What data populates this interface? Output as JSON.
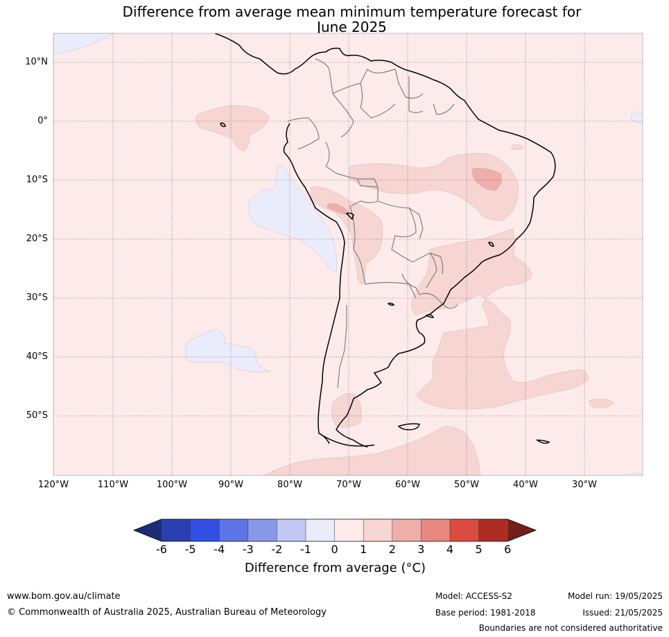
{
  "title_line1": "Difference from average mean minimum temperature forecast for",
  "title_line2": "June 2025",
  "lat_labels": [
    "10°N",
    "0°",
    "10°S",
    "20°S",
    "30°S",
    "40°S",
    "50°S"
  ],
  "lon_labels": [
    "120°W",
    "110°W",
    "100°W",
    "90°W",
    "80°W",
    "70°W",
    "60°W",
    "50°W",
    "40°W",
    "30°W"
  ],
  "colorbar": {
    "ticks": [
      "-6",
      "-5",
      "-4",
      "-3",
      "-2",
      "-1",
      "0",
      "1",
      "2",
      "3",
      "4",
      "5",
      "6"
    ],
    "colors": [
      "#2a3fb0",
      "#3150e3",
      "#5f74e6",
      "#8899ec",
      "#c2c8f4",
      "#eaecfb",
      "#fcebea",
      "#f6d5d3",
      "#eeaea9",
      "#e88880",
      "#db4b3f",
      "#ad2c24"
    ],
    "low_extend_color": "#1e2c78",
    "high_extend_color": "#741e1b",
    "label": "Difference from average (°C)"
  },
  "map_colors": {
    "base_anomaly": "#fcebea",
    "warm_1_2": "#f6d5d3",
    "warm_2_3": "#eeaea9",
    "cool_0_1": "#eaecfb",
    "coast": "#000000",
    "borders": "#808080",
    "grid": "#444444"
  },
  "footer": {
    "website": "www.bom.gov.au/climate",
    "copyright": "© Commonwealth of Australia 2025, Australian Bureau of Meteorology",
    "model": "Model: ACCESS-S2",
    "base_period": "Base period: 1981-2018",
    "model_run": "Model run: 19/05/2025",
    "issued": "Issued: 21/05/2025",
    "disclaimer": "Boundaries are not considered authoritative"
  }
}
